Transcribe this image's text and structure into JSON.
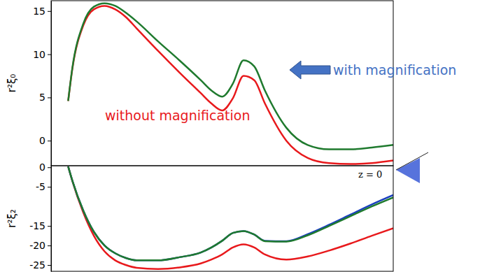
{
  "chart_data": [
    {
      "type": "line",
      "ylabel": "r²ξ₀",
      "x": [
        8,
        10,
        15,
        20,
        25,
        30,
        35,
        40,
        50,
        60,
        70,
        75,
        80,
        85,
        90,
        95,
        100,
        110,
        120,
        130,
        140,
        150,
        160
      ],
      "xlim": [
        0,
        160
      ],
      "ylim": [
        -2.9,
        16.2
      ],
      "yticks": [
        0,
        5,
        10,
        15
      ],
      "tick_labels": "y",
      "series": [
        {
          "color": "#e8191c",
          "values": [
            4.6,
            8.4,
            13.3,
            15.2,
            15.6,
            15.2,
            14.3,
            13.0,
            10.4,
            7.9,
            5.5,
            4.3,
            3.5,
            4.9,
            7.5,
            7.0,
            4.3,
            0,
            -2.0,
            -2.6,
            -2.7,
            -2.6,
            -2.3
          ]
        },
        {
          "color": "#1f7a2e",
          "values": [
            4.6,
            8.5,
            13.5,
            15.5,
            15.9,
            15.6,
            14.8,
            13.8,
            11.5,
            9.3,
            7.0,
            5.8,
            5.1,
            6.6,
            9.3,
            8.6,
            5.8,
            1.5,
            -0.5,
            -1.0,
            -1.0,
            -0.8,
            -0.5
          ]
        }
      ],
      "annotations": [
        {
          "text": "without magnification",
          "color": "#e8191c"
        },
        {
          "text": "with magnification",
          "color": "#4472c4"
        }
      ]
    },
    {
      "type": "line",
      "ylabel": "r²ξ₂",
      "x": [
        8,
        10,
        15,
        20,
        25,
        30,
        35,
        40,
        50,
        60,
        70,
        75,
        80,
        85,
        90,
        95,
        100,
        110,
        120,
        130,
        140,
        150,
        160
      ],
      "xlim": [
        0,
        160
      ],
      "ylim": [
        -26.6,
        0.4
      ],
      "yticks": [
        0,
        -5,
        -15,
        -20,
        -25
      ],
      "tick_labels": "y",
      "series": [
        {
          "color": "#e8191c",
          "values": [
            0.2,
            -3.6,
            -11.5,
            -17.5,
            -21.5,
            -23.8,
            -25.0,
            -25.7,
            -26.0,
            -25.6,
            -24.6,
            -23.6,
            -22.3,
            -20.5,
            -19.7,
            -20.5,
            -22.3,
            -23.6,
            -22.8,
            -21.3,
            -19.5,
            -17.5,
            -15.6
          ]
        },
        {
          "color": "#1a3fbf",
          "values": [
            0.2,
            -3.5,
            -11,
            -16.5,
            -20,
            -22,
            -23.2,
            -23.8,
            -23.8,
            -23.0,
            -21.8,
            -20.5,
            -18.8,
            -16.8,
            -16.3,
            -17.2,
            -18.8,
            -18.9,
            -17.1,
            -14.7,
            -12.1,
            -9.5,
            -7.1
          ]
        },
        {
          "color": "#1f7a2e",
          "values": [
            0.2,
            -3.5,
            -11,
            -16.5,
            -20,
            -22,
            -23.2,
            -23.8,
            -23.8,
            -23.0,
            -21.8,
            -20.5,
            -18.8,
            -16.8,
            -16.3,
            -17.2,
            -18.9,
            -19.0,
            -17.4,
            -15.0,
            -12.5,
            -10.0,
            -7.7
          ]
        }
      ],
      "annotations": [
        {
          "text": "z = 0"
        }
      ]
    }
  ]
}
